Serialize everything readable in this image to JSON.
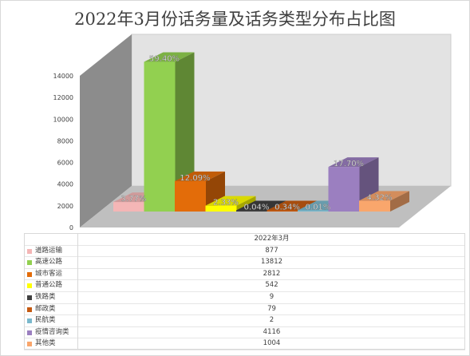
{
  "chart_data": {
    "type": "bar",
    "title": "2022年3月份话务量及话务类型分布占比图",
    "series_name": "2022年3月",
    "categories": [
      "道路运输",
      "高速公路",
      "城市客运",
      "普通公路",
      "铁路类",
      "邮政类",
      "民航类",
      "疫情咨询类",
      "其他类"
    ],
    "values": [
      877,
      13812,
      2812,
      542,
      9,
      79,
      2,
      4116,
      1004
    ],
    "percent_labels": [
      "3.77%",
      "59.40%",
      "12.09%",
      "2.33%",
      "0.04%",
      "0.34%",
      "0.01%",
      "17.70%",
      "4.32%"
    ],
    "colors": [
      "#f4b6b6",
      "#92d050",
      "#e36c09",
      "#ffff00",
      "#404040",
      "#c55a11",
      "#7ab8cc",
      "#9b7fc0",
      "#f9a66c"
    ],
    "y_ticks": [
      "0",
      "2000",
      "4000",
      "6000",
      "8000",
      "10000",
      "12000",
      "14000"
    ],
    "ylim": [
      0,
      14000
    ],
    "grid": false,
    "legend": "data-table"
  }
}
